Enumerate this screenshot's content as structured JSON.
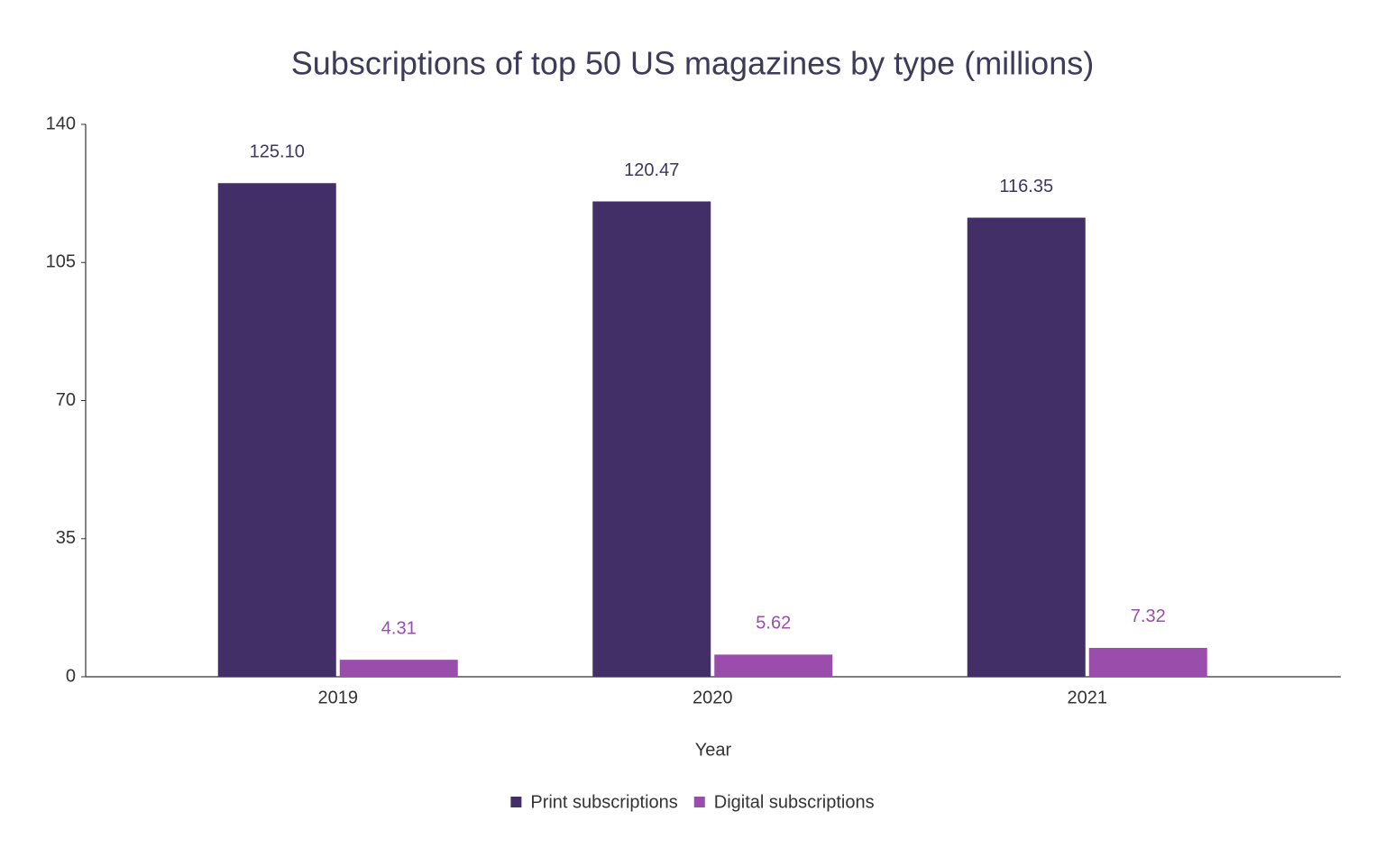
{
  "chart_data": {
    "type": "bar",
    "title": "Subscriptions of top 50 US magazines by type (millions)",
    "x_label": "Year",
    "categories": [
      "2019",
      "2020",
      "2021"
    ],
    "series": [
      {
        "name": "Print subscriptions",
        "color": "#432f68",
        "values": [
          125.1,
          120.47,
          116.35
        ],
        "value_labels": [
          "125.10",
          "120.47",
          "116.35"
        ]
      },
      {
        "name": "Digital subscriptions",
        "color": "#9b4dab",
        "values": [
          4.31,
          5.62,
          7.32
        ]
      }
    ],
    "ylim": [
      0,
      140
    ],
    "yticks": [
      0,
      35,
      70,
      105,
      140
    ],
    "grid": false,
    "legend": "bottom"
  }
}
